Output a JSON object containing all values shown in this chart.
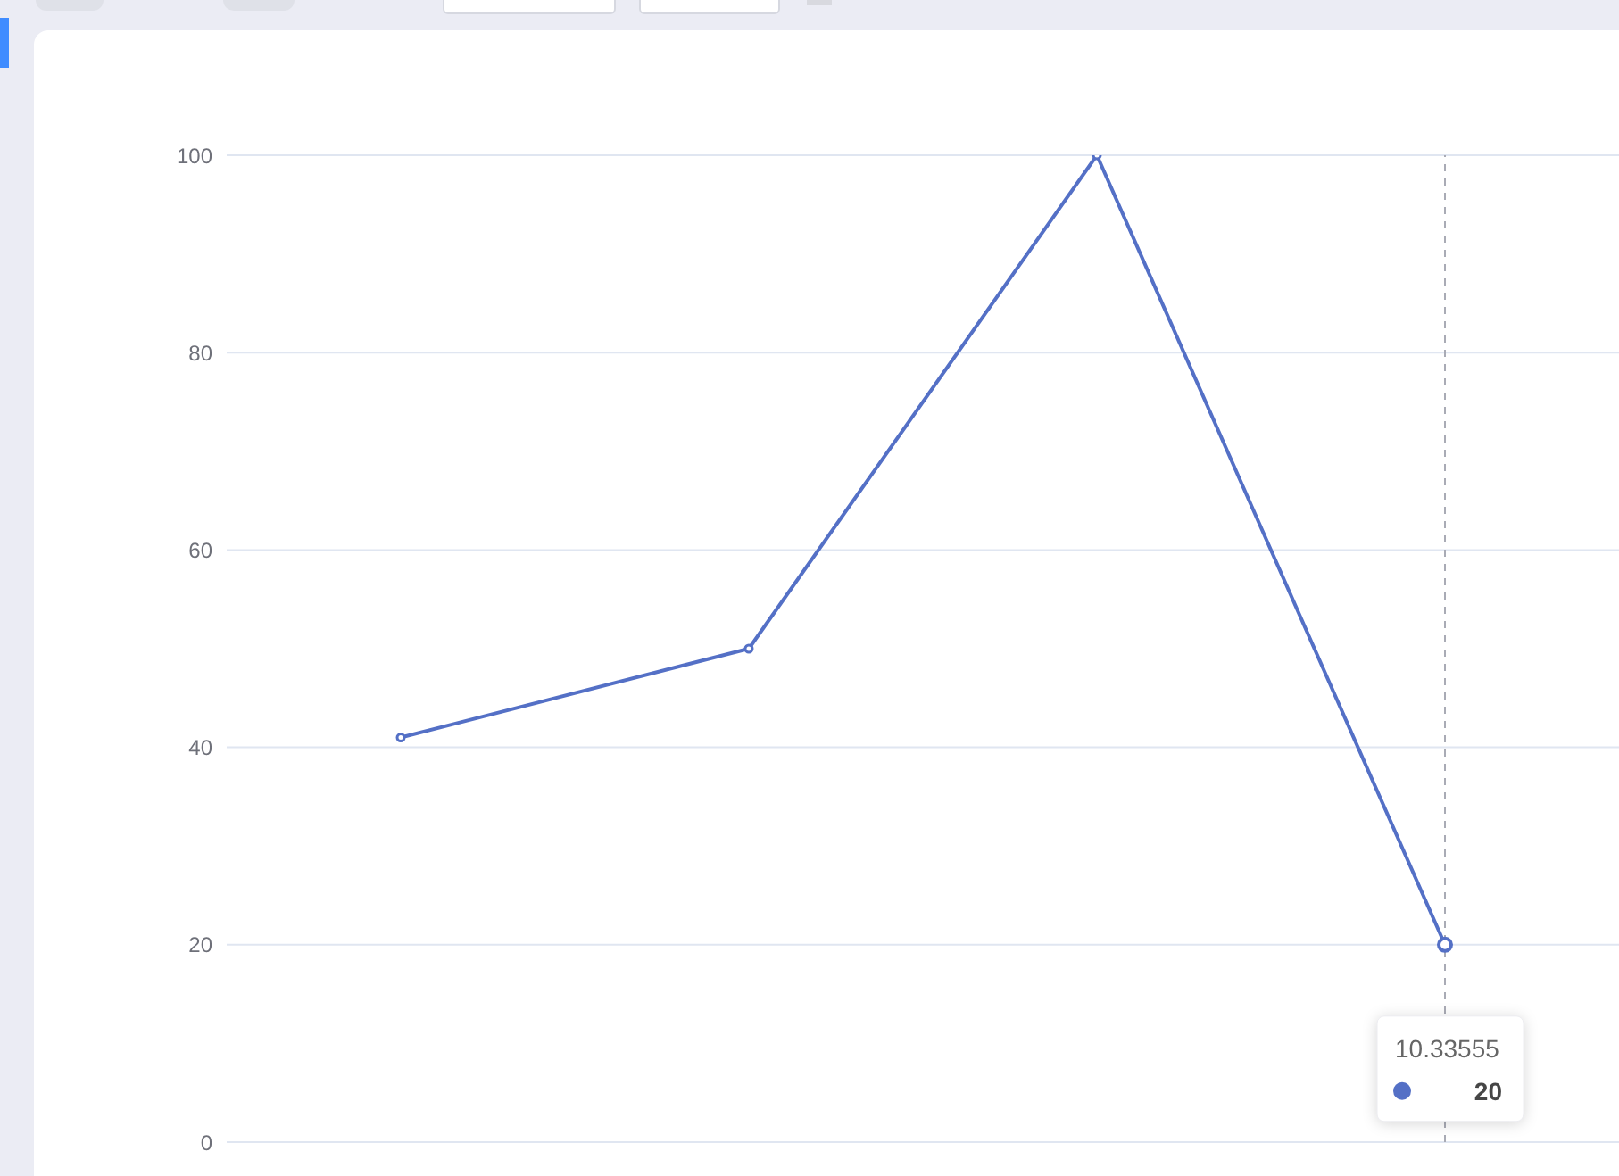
{
  "chart_data": {
    "type": "line",
    "categories": [
      null,
      null,
      null,
      "10.33555"
    ],
    "series": [
      {
        "color": "#5470c6",
        "values": [
          41,
          50,
          100,
          20
        ]
      }
    ],
    "ylim": [
      0,
      100
    ],
    "yticks": [
      0,
      20,
      40,
      60,
      80,
      100
    ],
    "grid": "y",
    "marker": "circle",
    "tick_labels": "y",
    "ref_lines": [
      {
        "axis": "x",
        "value": "10.33555",
        "color": "#a9abb5",
        "line_style": "dashed"
      }
    ],
    "annotations": [
      "20"
    ]
  }
}
